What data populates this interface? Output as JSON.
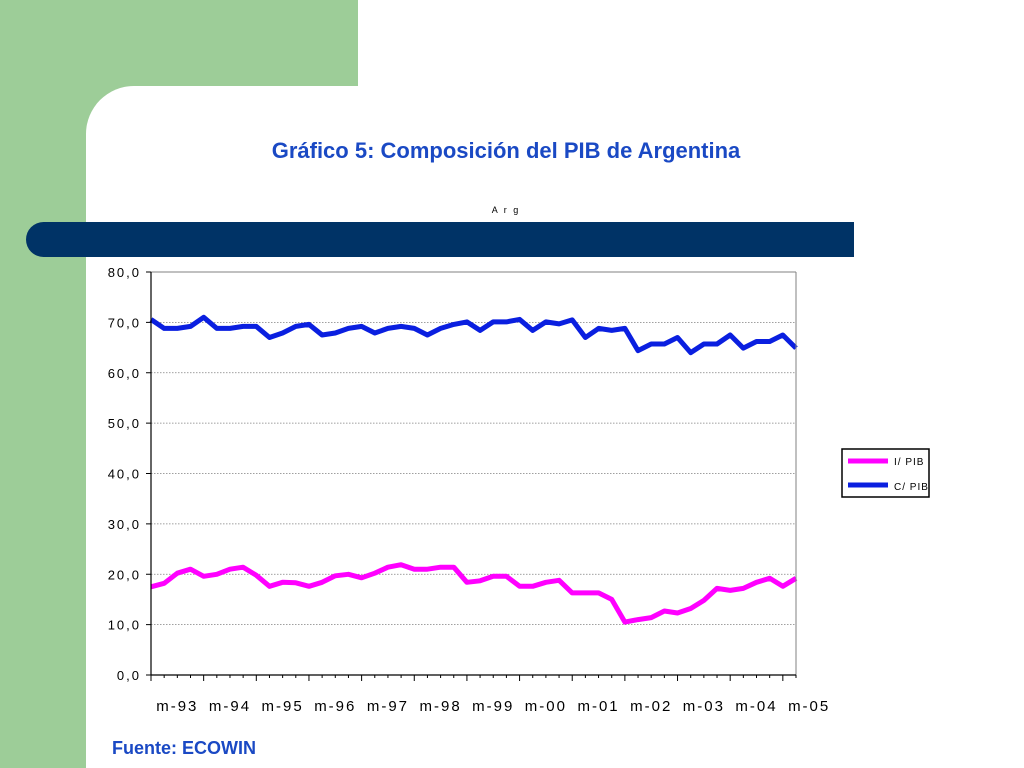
{
  "slide": {
    "title": "Gráfico 5: Composición del PIB de Argentina",
    "source": "Fuente: ECOWIN"
  },
  "colors": {
    "green_block": "#9dcd98",
    "band": "#003366",
    "title": "#1a49c4",
    "series_ipib": "#ff00ff",
    "series_cpib": "#0a1fe0"
  },
  "chart_data": {
    "type": "line",
    "title": "A r g",
    "xlabel": "",
    "ylabel": "",
    "ylim": [
      0,
      80
    ],
    "y_ticks": [
      "0,0",
      "10,0",
      "20,0",
      "30,0",
      "40,0",
      "50,0",
      "60,0",
      "70,0",
      "80,0"
    ],
    "y_tick_values": [
      0,
      10,
      20,
      30,
      40,
      50,
      60,
      70,
      80
    ],
    "x_ticks": [
      "m-93",
      "m-94",
      "m-95",
      "m-96",
      "m-97",
      "m-98",
      "m-99",
      "m-00",
      "m-01",
      "m-02",
      "m-03",
      "m-04",
      "m-05"
    ],
    "grid": "horizontal",
    "legend_position": "right",
    "series": [
      {
        "name": "I/ PIB",
        "color": "#ff00ff",
        "values": [
          17.5,
          18.2,
          20.2,
          21.0,
          19.6,
          20.0,
          21.0,
          21.4,
          19.8,
          17.6,
          18.4,
          18.3,
          17.6,
          18.4,
          19.7,
          20.0,
          19.3,
          20.2,
          21.4,
          21.9,
          21.0,
          21.0,
          21.4,
          21.4,
          18.4,
          18.7,
          19.6,
          19.6,
          17.6,
          17.6,
          18.4,
          18.8,
          16.3,
          16.3,
          16.3,
          15.0,
          10.5,
          11.0,
          11.4,
          12.7,
          12.3,
          13.2,
          14.8,
          17.2,
          16.8,
          17.2,
          18.4,
          19.2,
          17.6,
          19.2
        ]
      },
      {
        "name": "C/ PIB",
        "color": "#0a1fe0",
        "values": [
          70.6,
          68.8,
          68.8,
          69.2,
          71.0,
          68.8,
          68.8,
          69.2,
          69.2,
          67.0,
          67.9,
          69.2,
          69.6,
          67.5,
          67.9,
          68.8,
          69.2,
          67.9,
          68.8,
          69.2,
          68.8,
          67.5,
          68.8,
          69.6,
          70.1,
          68.4,
          70.1,
          70.1,
          70.6,
          68.4,
          70.1,
          69.7,
          70.5,
          67.0,
          68.8,
          68.4,
          68.8,
          64.4,
          65.7,
          65.7,
          67.0,
          64.0,
          65.7,
          65.7,
          67.5,
          64.9,
          66.2,
          66.2,
          67.5,
          64.9
        ]
      }
    ]
  }
}
